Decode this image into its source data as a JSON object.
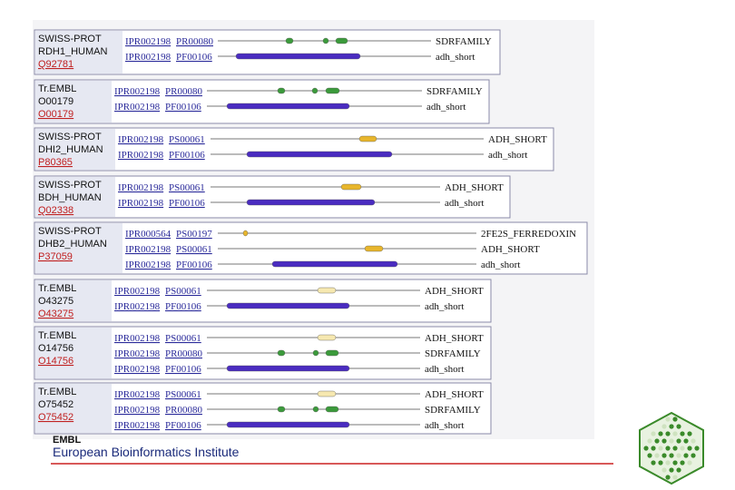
{
  "entries": [
    {
      "db": "SWISS-PROT",
      "name": "RDH1_HUMAN",
      "accession": "Q92781",
      "rows": [
        {
          "ipr": "IPR002198",
          "signature": "PR00080",
          "label": "SDRFAMILY"
        },
        {
          "ipr": "IPR002198",
          "signature": "PF00106",
          "label": "adh_short"
        }
      ]
    },
    {
      "db": "Tr.EMBL",
      "name": "O00179",
      "accession": "O00179",
      "rows": [
        {
          "ipr": "IPR002198",
          "signature": "PR00080",
          "label": "SDRFAMILY"
        },
        {
          "ipr": "IPR002198",
          "signature": "PF00106",
          "label": "adh_short"
        }
      ]
    },
    {
      "db": "SWISS-PROT",
      "name": "DHI2_HUMAN",
      "accession": "P80365",
      "rows": [
        {
          "ipr": "IPR002198",
          "signature": "PS00061",
          "label": "ADH_SHORT"
        },
        {
          "ipr": "IPR002198",
          "signature": "PF00106",
          "label": "adh_short"
        }
      ]
    },
    {
      "db": "SWISS-PROT",
      "name": "BDH_HUMAN",
      "accession": "Q02338",
      "rows": [
        {
          "ipr": "IPR002198",
          "signature": "PS00061",
          "label": "ADH_SHORT"
        },
        {
          "ipr": "IPR002198",
          "signature": "PF00106",
          "label": "adh_short"
        }
      ]
    },
    {
      "db": "SWISS-PROT",
      "name": "DHB2_HUMAN",
      "accession": "P37059",
      "rows": [
        {
          "ipr": "IPR000564",
          "signature": "PS00197",
          "label": "2FE2S_FERREDOXIN"
        },
        {
          "ipr": "IPR002198",
          "signature": "PS00061",
          "label": "ADH_SHORT"
        },
        {
          "ipr": "IPR002198",
          "signature": "PF00106",
          "label": "adh_short"
        }
      ]
    },
    {
      "db": "Tr.EMBL",
      "name": "O43275",
      "accession": "O43275",
      "rows": [
        {
          "ipr": "IPR002198",
          "signature": "PS00061",
          "label": "ADH_SHORT"
        },
        {
          "ipr": "IPR002198",
          "signature": "PF00106",
          "label": "adh_short"
        }
      ]
    },
    {
      "db": "Tr.EMBL",
      "name": "O14756",
      "accession": "O14756",
      "rows": [
        {
          "ipr": "IPR002198",
          "signature": "PS00061",
          "label": "ADH_SHORT"
        },
        {
          "ipr": "IPR002198",
          "signature": "PR00080",
          "label": "SDRFAMILY"
        },
        {
          "ipr": "IPR002198",
          "signature": "PF00106",
          "label": "adh_short"
        }
      ]
    },
    {
      "db": "Tr.EMBL",
      "name": "O75452",
      "accession": "O75452",
      "rows": [
        {
          "ipr": "IPR002198",
          "signature": "PS00061",
          "label": "ADH_SHORT"
        },
        {
          "ipr": "IPR002198",
          "signature": "PR00080",
          "label": "SDRFAMILY"
        },
        {
          "ipr": "IPR002198",
          "signature": "PF00106",
          "label": "adh_short"
        }
      ]
    }
  ],
  "footer": {
    "org": "EMBL",
    "institute": "European Bioinformatics Institute"
  }
}
